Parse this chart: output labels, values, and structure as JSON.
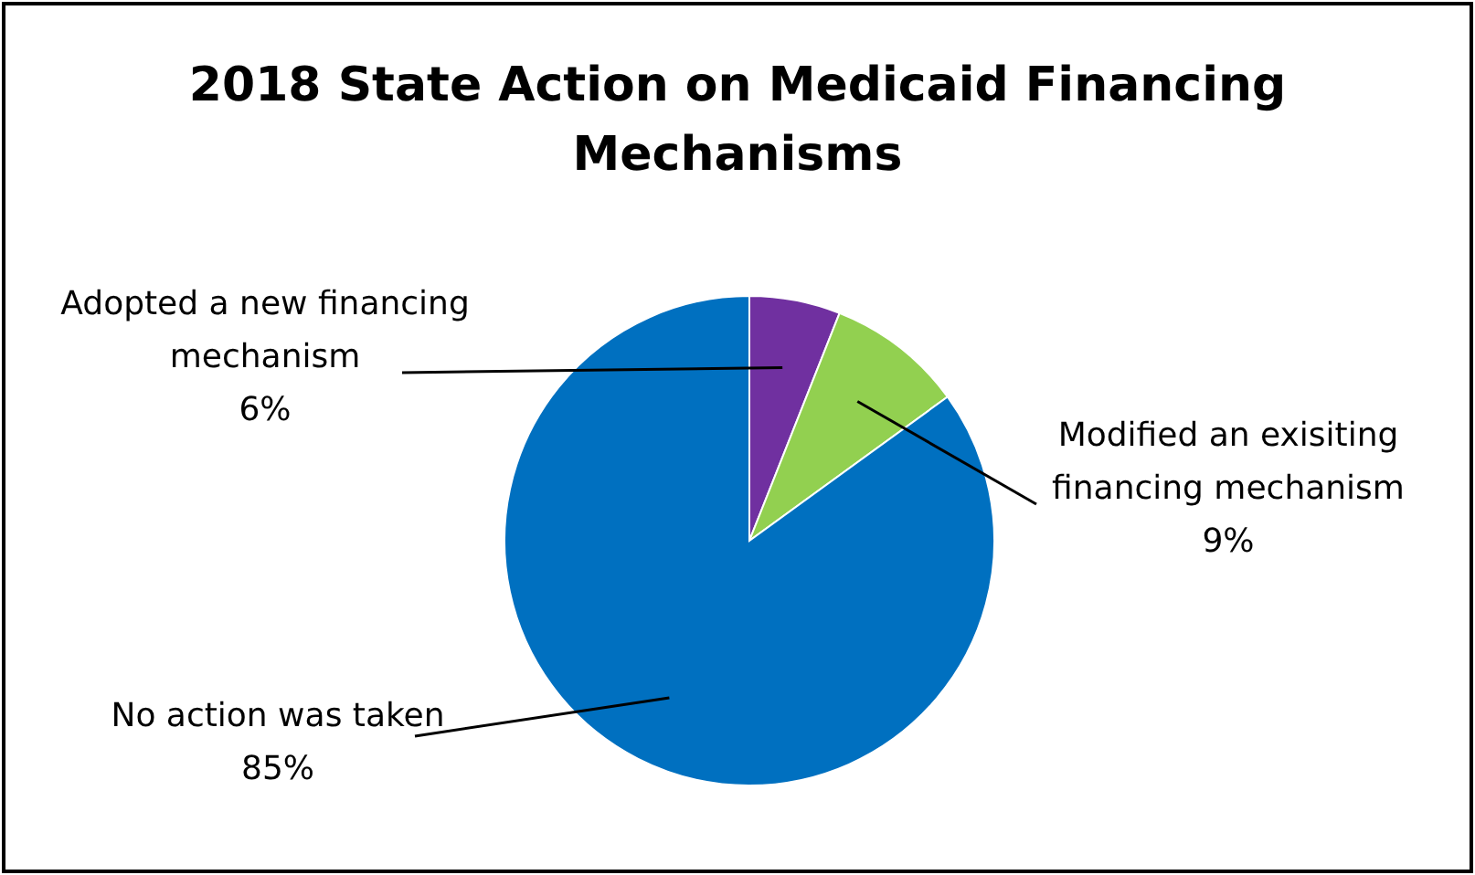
{
  "chart_data": {
    "type": "pie",
    "title": "2018 State Action on Medicaid Financing Mechanisms",
    "categories": [
      "Adopted a new financing mechanism",
      "Modified an exisiting financing mechanism",
      "No action was taken"
    ],
    "values": [
      6,
      9,
      85
    ],
    "colors": [
      "#7030a0",
      "#92d050",
      "#0070c0"
    ],
    "value_labels": [
      "6%",
      "9%",
      "85%"
    ]
  }
}
